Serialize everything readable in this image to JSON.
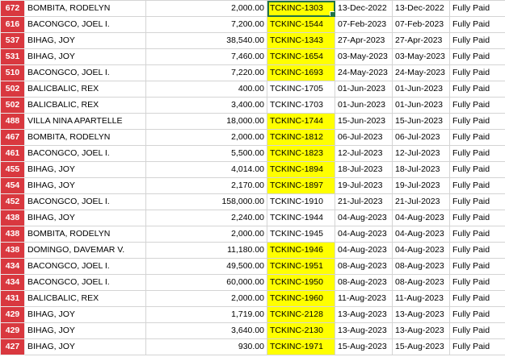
{
  "rows": [
    {
      "num": "672",
      "name": "BOMBITA, RODELYN",
      "amount": "2,000.00",
      "ref": "TCKINC-1303",
      "date1": "13-Dec-2022",
      "date2": "13-Dec-2022",
      "status": "Fully Paid",
      "highlight": true
    },
    {
      "num": "616",
      "name": "BACONGCO, JOEL I.",
      "amount": "7,200.00",
      "ref": "TCKINC-1544",
      "date1": "07-Feb-2023",
      "date2": "07-Feb-2023",
      "status": "Fully Paid",
      "highlight": true
    },
    {
      "num": "537",
      "name": "BIHAG, JOY",
      "amount": "38,540.00",
      "ref": "TCKINC-1343",
      "date1": "27-Apr-2023",
      "date2": "27-Apr-2023",
      "status": "Fully Paid",
      "highlight": true
    },
    {
      "num": "531",
      "name": "BIHAG, JOY",
      "amount": "7,460.00",
      "ref": "TCKINC-1654",
      "date1": "03-May-2023",
      "date2": "03-May-2023",
      "status": "Fully Paid",
      "highlight": true
    },
    {
      "num": "510",
      "name": "BACONGCO, JOEL I.",
      "amount": "7,220.00",
      "ref": "TCKINC-1693",
      "date1": "24-May-2023",
      "date2": "24-May-2023",
      "status": "Fully Paid",
      "highlight": true
    },
    {
      "num": "502",
      "name": "BALICBALIC, REX",
      "amount": "400.00",
      "ref": "TCKINC-1705",
      "date1": "01-Jun-2023",
      "date2": "01-Jun-2023",
      "status": "Fully Paid",
      "highlight": false
    },
    {
      "num": "502",
      "name": "BALICBALIC, REX",
      "amount": "3,400.00",
      "ref": "TCKINC-1703",
      "date1": "01-Jun-2023",
      "date2": "01-Jun-2023",
      "status": "Fully Paid",
      "highlight": false
    },
    {
      "num": "488",
      "name": "VILLA NINA APARTELLE",
      "amount": "18,000.00",
      "ref": "TCKINC-1744",
      "date1": "15-Jun-2023",
      "date2": "15-Jun-2023",
      "status": "Fully Paid",
      "highlight": true
    },
    {
      "num": "467",
      "name": "BOMBITA, RODELYN",
      "amount": "2,000.00",
      "ref": "TCKINC-1812",
      "date1": "06-Jul-2023",
      "date2": "06-Jul-2023",
      "status": "Fully Paid",
      "highlight": true
    },
    {
      "num": "461",
      "name": "BACONGCO, JOEL I.",
      "amount": "5,500.00",
      "ref": "TCKINC-1823",
      "date1": "12-Jul-2023",
      "date2": "12-Jul-2023",
      "status": "Fully Paid",
      "highlight": true
    },
    {
      "num": "455",
      "name": "BIHAG, JOY",
      "amount": "4,014.00",
      "ref": "TCKINC-1894",
      "date1": "18-Jul-2023",
      "date2": "18-Jul-2023",
      "status": "Fully Paid",
      "highlight": true
    },
    {
      "num": "454",
      "name": "BIHAG, JOY",
      "amount": "2,170.00",
      "ref": "TCKINC-1897",
      "date1": "19-Jul-2023",
      "date2": "19-Jul-2023",
      "status": "Fully Paid",
      "highlight": true
    },
    {
      "num": "452",
      "name": "BACONGCO, JOEL I.",
      "amount": "158,000.00",
      "ref": "TCKINC-1910",
      "date1": "21-Jul-2023",
      "date2": "21-Jul-2023",
      "status": "Fully Paid",
      "highlight": false
    },
    {
      "num": "438",
      "name": "BIHAG, JOY",
      "amount": "2,240.00",
      "ref": "TCKINC-1944",
      "date1": "04-Aug-2023",
      "date2": "04-Aug-2023",
      "status": "Fully Paid",
      "highlight": false
    },
    {
      "num": "438",
      "name": "BOMBITA, RODELYN",
      "amount": "2,000.00",
      "ref": "TCKINC-1945",
      "date1": "04-Aug-2023",
      "date2": "04-Aug-2023",
      "status": "Fully Paid",
      "highlight": false
    },
    {
      "num": "438",
      "name": "DOMINGO, DAVEMAR V.",
      "amount": "11,180.00",
      "ref": "TCKINC-1946",
      "date1": "04-Aug-2023",
      "date2": "04-Aug-2023",
      "status": "Fully Paid",
      "highlight": true
    },
    {
      "num": "434",
      "name": "BACONGCO, JOEL I.",
      "amount": "49,500.00",
      "ref": "TCKINC-1951",
      "date1": "08-Aug-2023",
      "date2": "08-Aug-2023",
      "status": "Fully Paid",
      "highlight": true
    },
    {
      "num": "434",
      "name": "BACONGCO, JOEL I.",
      "amount": "60,000.00",
      "ref": "TCKINC-1950",
      "date1": "08-Aug-2023",
      "date2": "08-Aug-2023",
      "status": "Fully Paid",
      "highlight": true
    },
    {
      "num": "431",
      "name": "BALICBALIC, REX",
      "amount": "2,000.00",
      "ref": "TCKINC-1960",
      "date1": "11-Aug-2023",
      "date2": "11-Aug-2023",
      "status": "Fully Paid",
      "highlight": true
    },
    {
      "num": "429",
      "name": "BIHAG, JOY",
      "amount": "1,719.00",
      "ref": "TCKINC-2128",
      "date1": "13-Aug-2023",
      "date2": "13-Aug-2023",
      "status": "Fully Paid",
      "highlight": true
    },
    {
      "num": "429",
      "name": "BIHAG, JOY",
      "amount": "3,640.00",
      "ref": "TCKINC-2130",
      "date1": "13-Aug-2023",
      "date2": "13-Aug-2023",
      "status": "Fully Paid",
      "highlight": true
    },
    {
      "num": "427",
      "name": "BIHAG, JOY",
      "amount": "930.00",
      "ref": "TCKINC-1971",
      "date1": "15-Aug-2023",
      "date2": "15-Aug-2023",
      "status": "Fully Paid",
      "highlight": true
    }
  ],
  "colors": {
    "row_header": "#d9383f",
    "highlight": "#ffff00",
    "selection": "#217346"
  }
}
